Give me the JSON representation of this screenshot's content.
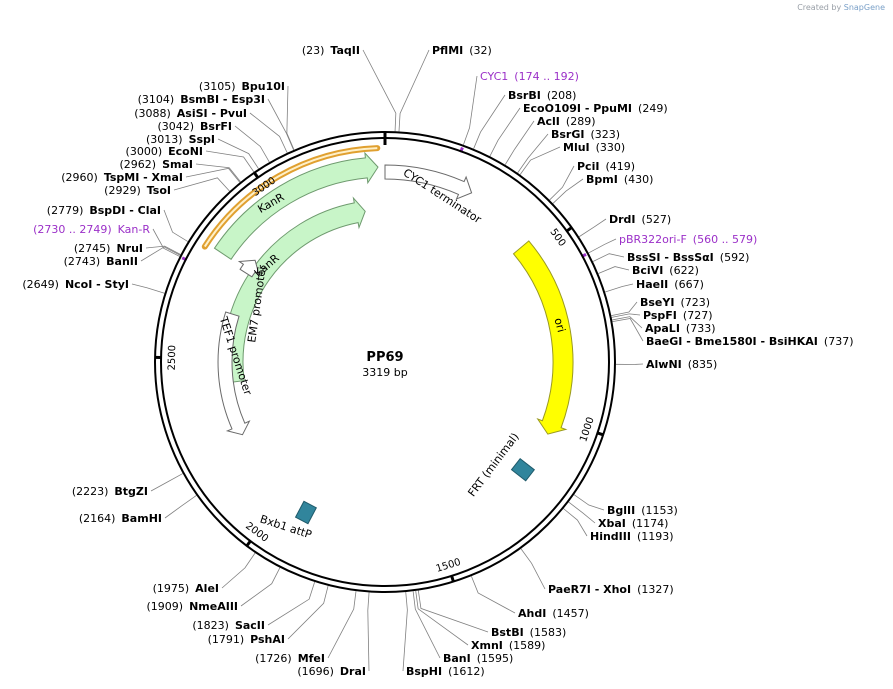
{
  "credit": {
    "prefix": "Created by",
    "brand": "SnapGene"
  },
  "plasmid": {
    "name": "PP69",
    "size_label": "3319 bp",
    "length": 3319
  },
  "ticks": [
    {
      "pos": 500,
      "label": "500"
    },
    {
      "pos": 1000,
      "label": "1000"
    },
    {
      "pos": 1500,
      "label": "1500"
    },
    {
      "pos": 2000,
      "label": "2000"
    },
    {
      "pos": 2500,
      "label": "2500"
    },
    {
      "pos": 3000,
      "label": "3000"
    }
  ],
  "features": [
    {
      "name": "KanR",
      "label": "KanR",
      "start": 2800,
      "end": 3300,
      "color": "#c8f5c8",
      "stroke": "#6e9a6e"
    },
    {
      "name": "KanR-inner",
      "label": "KanR",
      "start": 2420,
      "end": 3250,
      "color": "#c8f5c8",
      "stroke": "#6e9a6e"
    },
    {
      "name": "CYC1-terminator",
      "label": "CYC1 terminator",
      "start": 0,
      "end": 250,
      "color": "#ffffff",
      "stroke": "#6a6a6a"
    },
    {
      "name": "ori",
      "label": "ori",
      "start": 460,
      "end": 1050,
      "color": "#ffff00",
      "stroke": "#9a9a20"
    },
    {
      "name": "FRT",
      "label": "FRT (minimal)",
      "start": 1150,
      "end": 1200,
      "color": "#31859c",
      "stroke": "#1f5a6a"
    },
    {
      "name": "Bxb1-attP",
      "label": "Bxb1 attP",
      "start": 1890,
      "end": 1940,
      "color": "#31859c",
      "stroke": "#1f5a6a"
    },
    {
      "name": "TEF1-promoter",
      "label": "TEF1 promoter",
      "start": 2240,
      "end": 2650,
      "color": "#ffffff",
      "stroke": "#6a6a6a"
    },
    {
      "name": "EM7-promoter",
      "label": "EM7 promoter",
      "start": 2790,
      "end": 2840,
      "color": "#ffffff",
      "stroke": "#6a6a6a"
    }
  ],
  "enzymes_right": [
    {
      "name": "TaqII",
      "num": "(23)",
      "pos": 23
    },
    {
      "name": "PflMI",
      "num": "(32)",
      "pos": 32
    },
    {
      "name": "CYC1",
      "num": "(174 .. 192)",
      "pos": 183,
      "primer": true
    },
    {
      "name": "BsrBI",
      "num": "(208)",
      "pos": 208
    },
    {
      "name": "EcoO109I - PpuMI",
      "num": "(249)",
      "pos": 249
    },
    {
      "name": "AclI",
      "num": "(289)",
      "pos": 289
    },
    {
      "name": "BsrGI",
      "num": "(323)",
      "pos": 323
    },
    {
      "name": "MluI",
      "num": "(330)",
      "pos": 330
    },
    {
      "name": "PciI",
      "num": "(419)",
      "pos": 419
    },
    {
      "name": "BpmI",
      "num": "(430)",
      "pos": 430
    },
    {
      "name": "DrdI",
      "num": "(527)",
      "pos": 527
    },
    {
      "name": "pBR322ori-F",
      "num": "(560 .. 579)",
      "pos": 570,
      "primer": true
    },
    {
      "name": "BssSI - BssSαI",
      "num": "(592)",
      "pos": 592
    },
    {
      "name": "BciVI",
      "num": "(622)",
      "pos": 622
    },
    {
      "name": "HaeII",
      "num": "(667)",
      "pos": 667
    },
    {
      "name": "BseYI",
      "num": "(723)",
      "pos": 723
    },
    {
      "name": "PspFI",
      "num": "(727)",
      "pos": 727
    },
    {
      "name": "ApaLI",
      "num": "(733)",
      "pos": 733
    },
    {
      "name": "BaeGI - Bme1580I - BsiHKAI",
      "num": "(737)",
      "pos": 737
    },
    {
      "name": "AlwNI",
      "num": "(835)",
      "pos": 835
    },
    {
      "name": "BglII",
      "num": "(1153)",
      "pos": 1153
    },
    {
      "name": "XbaI",
      "num": "(1174)",
      "pos": 1174
    },
    {
      "name": "HindIII",
      "num": "(1193)",
      "pos": 1193
    },
    {
      "name": "PaeR7I - XhoI",
      "num": "(1327)",
      "pos": 1327
    },
    {
      "name": "AhdI",
      "num": "(1457)",
      "pos": 1457
    },
    {
      "name": "BstBI",
      "num": "(1583)",
      "pos": 1583
    },
    {
      "name": "XmnI",
      "num": "(1589)",
      "pos": 1589
    },
    {
      "name": "BanI",
      "num": "(1595)",
      "pos": 1595
    },
    {
      "name": "BspHI",
      "num": "(1612)",
      "pos": 1612
    }
  ],
  "enzymes_left": [
    {
      "name": "DraI",
      "num": "(1696)",
      "pos": 1696
    },
    {
      "name": "MfeI",
      "num": "(1726)",
      "pos": 1726
    },
    {
      "name": "PshAI",
      "num": "(1791)",
      "pos": 1791
    },
    {
      "name": "SacII",
      "num": "(1823)",
      "pos": 1823
    },
    {
      "name": "NmeAIII",
      "num": "(1909)",
      "pos": 1909
    },
    {
      "name": "AleI",
      "num": "(1975)",
      "pos": 1975
    },
    {
      "name": "BamHI",
      "num": "(2164)",
      "pos": 2164
    },
    {
      "name": "BtgZI",
      "num": "(2223)",
      "pos": 2223
    },
    {
      "name": "NcoI - StyI",
      "num": "(2649)",
      "pos": 2649
    },
    {
      "name": "BanII",
      "num": "(2743)",
      "pos": 2743
    },
    {
      "name": "NruI",
      "num": "(2745)",
      "pos": 2745
    },
    {
      "name": "Kan-R",
      "num": "(2730 .. 2749)",
      "pos": 2740,
      "primer": true
    },
    {
      "name": "BspDI - ClaI",
      "num": "(2779)",
      "pos": 2779
    },
    {
      "name": "TsoI",
      "num": "(2929)",
      "pos": 2929
    },
    {
      "name": "TspMI - XmaI",
      "num": "(2960)",
      "pos": 2960
    },
    {
      "name": "SmaI",
      "num": "(2962)",
      "pos": 2962
    },
    {
      "name": "EcoNI",
      "num": "(3000)",
      "pos": 3000
    },
    {
      "name": "SspI",
      "num": "(3013)",
      "pos": 3013
    },
    {
      "name": "BsrFI",
      "num": "(3042)",
      "pos": 3042
    },
    {
      "name": "AsiSI - PvuI",
      "num": "(3088)",
      "pos": 3088
    },
    {
      "name": "BsmBI - Esp3I",
      "num": "(3104)",
      "pos": 3104
    },
    {
      "name": "Bpu10I",
      "num": "(3105)",
      "pos": 3105
    }
  ]
}
